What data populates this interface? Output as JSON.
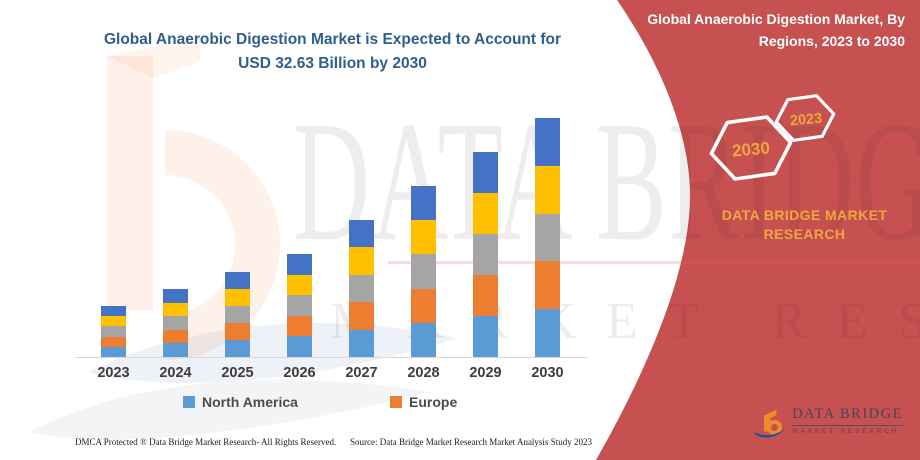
{
  "colors": {
    "panel_red": "#C75050",
    "title_blue": "#2E5F8C",
    "gold": "#F0A63F",
    "axis_label": "#3D3D3D",
    "legend_text": "#4C4C4C",
    "bar_north_america": "#5B9BD5",
    "bar_europe": "#ED7D31",
    "bar_gray": "#A5A5A5",
    "bar_yellow": "#FFC000",
    "bar_dark_blue": "#4472C4"
  },
  "left_section": {
    "title": "Global Anaerobic Digestion Market is Expected to Account for\nUSD 32.63 Billion by 2030",
    "footer_dmca": "DMCA Protected ® Data Bridge Market Research-  All Rights Reserved.",
    "footer_source": "Source: Data Bridge Market Research  Market Analysis Study 2023"
  },
  "watermark": {
    "line_big": "DATA BRIDGE",
    "line_small": "MARKET RESEARCH"
  },
  "chart_data": {
    "type": "bar",
    "stacked": true,
    "title": "Global Anaerobic Digestion Market is Expected to Account for USD 32.63 Billion by 2030",
    "unit": "USD Billion",
    "categories": [
      "2023",
      "2024",
      "2025",
      "2026",
      "2027",
      "2028",
      "2029",
      "2030"
    ],
    "totals": [
      6.96,
      9.28,
      11.6,
      14.06,
      18.7,
      23.35,
      27.99,
      32.63
    ],
    "series": [
      {
        "name": "North America",
        "color": "#5B9BD5",
        "legend": true,
        "values": [
          1.39,
          1.86,
          2.32,
          2.81,
          3.74,
          4.67,
          5.6,
          6.53
        ]
      },
      {
        "name": "Europe",
        "color": "#ED7D31",
        "legend": true,
        "values": [
          1.39,
          1.86,
          2.32,
          2.81,
          3.74,
          4.67,
          5.6,
          6.53
        ]
      },
      {
        "name": "",
        "color": "#A5A5A5",
        "legend": false,
        "values": [
          1.39,
          1.86,
          2.32,
          2.81,
          3.74,
          4.67,
          5.6,
          6.53
        ]
      },
      {
        "name": "",
        "color": "#FFC000",
        "legend": false,
        "values": [
          1.39,
          1.86,
          2.32,
          2.81,
          3.74,
          4.67,
          5.6,
          6.53
        ]
      },
      {
        "name": "",
        "color": "#4472C4",
        "legend": false,
        "values": [
          1.39,
          1.86,
          2.32,
          2.81,
          3.74,
          4.67,
          5.6,
          6.53
        ]
      }
    ],
    "ylim": [
      0,
      35
    ],
    "grid": false,
    "legend_position": "bottom"
  },
  "right_panel": {
    "header": "Global Anaerobic Digestion Market, By\nRegions, 2023 to 2030",
    "hexagons": [
      {
        "label": "2030"
      },
      {
        "label": "2023"
      }
    ],
    "brand_text": "DATA BRIDGE MARKET\nRESEARCH",
    "logo": {
      "title": "DATA BRIDGE",
      "subtitle": "MARKET RESEARCH"
    }
  }
}
